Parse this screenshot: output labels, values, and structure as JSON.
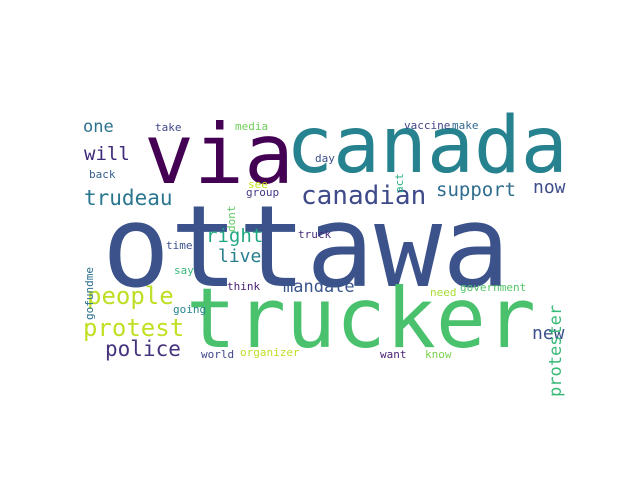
{
  "word_cloud": {
    "words": [
      {
        "key": "ottawa",
        "text": "ottawa",
        "color": "#3b528b"
      },
      {
        "key": "trucker",
        "text": "trucker",
        "color": "#4ac16d"
      },
      {
        "key": "canada",
        "text": "canada",
        "color": "#26828e"
      },
      {
        "key": "via",
        "text": "via",
        "color": "#440154"
      },
      {
        "key": "canadian",
        "text": "canadian",
        "color": "#3e4a89"
      },
      {
        "key": "protest",
        "text": "protest",
        "color": "#c2df23"
      },
      {
        "key": "people",
        "text": "people",
        "color": "#bddf26"
      },
      {
        "key": "police",
        "text": "police",
        "color": "#46337e"
      },
      {
        "key": "trudeau",
        "text": "trudeau",
        "color": "#2a768e"
      },
      {
        "key": "support",
        "text": "support",
        "color": "#2f6c8e"
      },
      {
        "key": "right",
        "text": "right",
        "color": "#22a884"
      },
      {
        "key": "live",
        "text": "live",
        "color": "#277f8e"
      },
      {
        "key": "mandate",
        "text": "mandate",
        "color": "#3a548c"
      },
      {
        "key": "will",
        "text": "will",
        "color": "#3f2a7a"
      },
      {
        "key": "one",
        "text": "one",
        "color": "#2c738e"
      },
      {
        "key": "now",
        "text": "now",
        "color": "#3d4d8a"
      },
      {
        "key": "new",
        "text": "new",
        "color": "#3b518b"
      },
      {
        "key": "protester",
        "text": "protester",
        "color": "#38b977"
      },
      {
        "key": "take",
        "text": "take",
        "color": "#404688"
      },
      {
        "key": "media",
        "text": "media",
        "color": "#6ece58"
      },
      {
        "key": "vaccine",
        "text": "vaccine",
        "color": "#414487"
      },
      {
        "key": "make",
        "text": "make",
        "color": "#31688e"
      },
      {
        "key": "day",
        "text": "day",
        "color": "#3c4f8a"
      },
      {
        "key": "act",
        "text": "act",
        "color": "#26ad81"
      },
      {
        "key": "back",
        "text": "back",
        "color": "#355f8d"
      },
      {
        "key": "see",
        "text": "see",
        "color": "#c5e021"
      },
      {
        "key": "dont",
        "text": "dont",
        "color": "#5ec962"
      },
      {
        "key": "group",
        "text": "group",
        "color": "#443a83"
      },
      {
        "key": "gofundme",
        "text": "gofundme",
        "color": "#2d708e"
      },
      {
        "key": "time",
        "text": "time",
        "color": "#3b528b"
      },
      {
        "key": "truck",
        "text": "truck",
        "color": "#472d7b"
      },
      {
        "key": "say",
        "text": "say",
        "color": "#35b779"
      },
      {
        "key": "think",
        "text": "think",
        "color": "#481f70"
      },
      {
        "key": "going",
        "text": "going",
        "color": "#25858e"
      },
      {
        "key": "need",
        "text": "need",
        "color": "#a8db34"
      },
      {
        "key": "government",
        "text": "government",
        "color": "#52c569"
      },
      {
        "key": "world",
        "text": "world",
        "color": "#404688"
      },
      {
        "key": "organizer",
        "text": "organizer",
        "color": "#bddf26"
      },
      {
        "key": "want",
        "text": "want",
        "color": "#482576"
      },
      {
        "key": "know",
        "text": "know",
        "color": "#7ad151"
      }
    ]
  }
}
